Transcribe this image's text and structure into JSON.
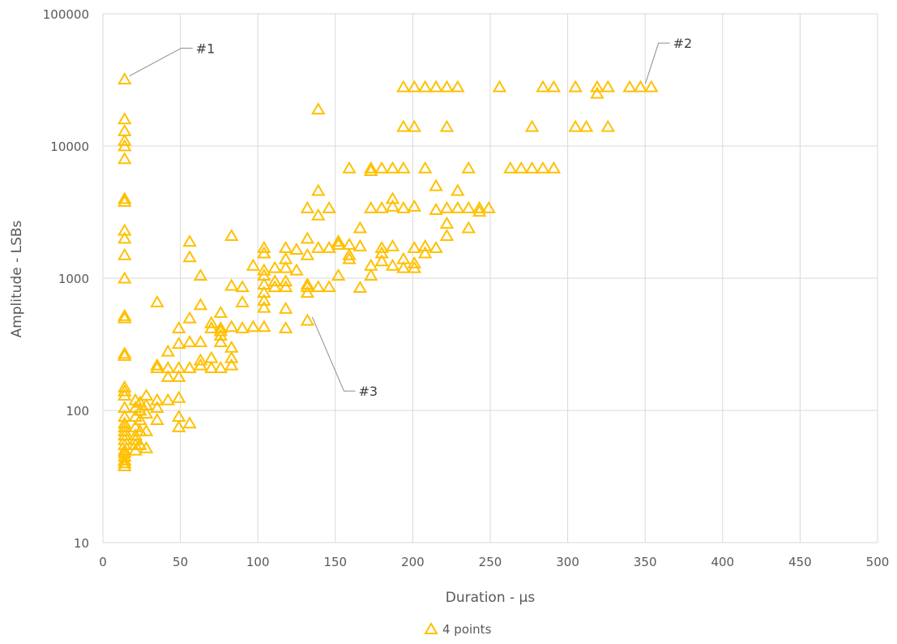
{
  "chart_data": {
    "type": "scatter",
    "xlabel": "Duration  -  µs",
    "ylabel": "Amplitude  -  LSBs",
    "xlim": [
      0,
      500
    ],
    "ylim": [
      10,
      100000
    ],
    "y_scale": "log",
    "x_ticks": [
      0,
      50,
      100,
      150,
      200,
      250,
      300,
      350,
      400,
      450,
      500
    ],
    "y_ticks": [
      10,
      100,
      1000,
      10000,
      100000
    ],
    "x_tick_labels": [
      "0",
      "50",
      "100",
      "150",
      "200",
      "250",
      "300",
      "350",
      "400",
      "450",
      "500"
    ],
    "y_tick_labels": [
      "10",
      "100",
      "1000",
      "10000",
      "100000"
    ],
    "grid": true,
    "legend": "bottom",
    "marker": "open-triangle",
    "color": "#FFC000",
    "series": [
      {
        "name": "4 points",
        "points": [
          [
            14,
            32000
          ],
          [
            14,
            16000
          ],
          [
            14,
            13000
          ],
          [
            14,
            11000
          ],
          [
            14,
            10000
          ],
          [
            14,
            8000
          ],
          [
            14,
            4000
          ],
          [
            14,
            3800
          ],
          [
            14,
            2300
          ],
          [
            14,
            2000
          ],
          [
            14,
            1500
          ],
          [
            14,
            1000
          ],
          [
            14,
            520
          ],
          [
            14,
            500
          ],
          [
            14,
            270
          ],
          [
            14,
            260
          ],
          [
            14,
            150
          ],
          [
            14,
            140
          ],
          [
            14,
            130
          ],
          [
            14,
            105
          ],
          [
            14,
            90
          ],
          [
            14,
            80
          ],
          [
            14,
            75
          ],
          [
            14,
            70
          ],
          [
            14,
            65
          ],
          [
            14,
            60
          ],
          [
            14,
            55
          ],
          [
            14,
            50
          ],
          [
            14,
            48
          ],
          [
            14,
            45
          ],
          [
            14,
            42
          ],
          [
            14,
            40
          ],
          [
            14,
            38
          ],
          [
            21,
            120
          ],
          [
            21,
            105
          ],
          [
            21,
            90
          ],
          [
            21,
            75
          ],
          [
            21,
            65
          ],
          [
            21,
            60
          ],
          [
            21,
            55
          ],
          [
            21,
            50
          ],
          [
            24,
            115
          ],
          [
            24,
            100
          ],
          [
            24,
            85
          ],
          [
            24,
            70
          ],
          [
            24,
            55
          ],
          [
            28,
            130
          ],
          [
            28,
            110
          ],
          [
            28,
            95
          ],
          [
            28,
            70
          ],
          [
            28,
            52
          ],
          [
            35,
            660
          ],
          [
            35,
            220
          ],
          [
            35,
            210
          ],
          [
            35,
            120
          ],
          [
            35,
            105
          ],
          [
            35,
            85
          ],
          [
            42,
            280
          ],
          [
            42,
            210
          ],
          [
            42,
            180
          ],
          [
            42,
            120
          ],
          [
            49,
            420
          ],
          [
            49,
            320
          ],
          [
            49,
            210
          ],
          [
            49,
            180
          ],
          [
            49,
            125
          ],
          [
            49,
            90
          ],
          [
            49,
            75
          ],
          [
            56,
            1900
          ],
          [
            56,
            1450
          ],
          [
            56,
            500
          ],
          [
            56,
            330
          ],
          [
            56,
            210
          ],
          [
            56,
            80
          ],
          [
            63,
            1050
          ],
          [
            63,
            630
          ],
          [
            63,
            330
          ],
          [
            63,
            240
          ],
          [
            63,
            220
          ],
          [
            70,
            460
          ],
          [
            70,
            420
          ],
          [
            70,
            250
          ],
          [
            70,
            210
          ],
          [
            76,
            550
          ],
          [
            76,
            420
          ],
          [
            76,
            400
          ],
          [
            76,
            370
          ],
          [
            76,
            330
          ],
          [
            76,
            210
          ],
          [
            83,
            2100
          ],
          [
            83,
            880
          ],
          [
            83,
            430
          ],
          [
            83,
            300
          ],
          [
            83,
            250
          ],
          [
            83,
            220
          ],
          [
            90,
            860
          ],
          [
            90,
            660
          ],
          [
            90,
            420
          ],
          [
            97,
            1250
          ],
          [
            97,
            430
          ],
          [
            104,
            1700
          ],
          [
            104,
            1550
          ],
          [
            104,
            1150
          ],
          [
            104,
            1050
          ],
          [
            104,
            900
          ],
          [
            104,
            780
          ],
          [
            104,
            680
          ],
          [
            104,
            600
          ],
          [
            104,
            430
          ],
          [
            111,
            1200
          ],
          [
            111,
            950
          ],
          [
            111,
            860
          ],
          [
            118,
            1700
          ],
          [
            118,
            1400
          ],
          [
            118,
            1200
          ],
          [
            118,
            950
          ],
          [
            118,
            860
          ],
          [
            118,
            590
          ],
          [
            118,
            420
          ],
          [
            125,
            1650
          ],
          [
            125,
            1150
          ],
          [
            132,
            3400
          ],
          [
            132,
            2000
          ],
          [
            132,
            1500
          ],
          [
            132,
            900
          ],
          [
            132,
            860
          ],
          [
            132,
            780
          ],
          [
            132,
            480
          ],
          [
            139,
            19000
          ],
          [
            139,
            4600
          ],
          [
            139,
            3000
          ],
          [
            139,
            1700
          ],
          [
            139,
            860
          ],
          [
            146,
            3400
          ],
          [
            146,
            1700
          ],
          [
            146,
            860
          ],
          [
            152,
            1900
          ],
          [
            152,
            1800
          ],
          [
            152,
            1050
          ],
          [
            159,
            6800
          ],
          [
            159,
            1800
          ],
          [
            159,
            1500
          ],
          [
            159,
            1400
          ],
          [
            166,
            2400
          ],
          [
            166,
            1750
          ],
          [
            166,
            850
          ],
          [
            173,
            6800
          ],
          [
            173,
            6500
          ],
          [
            173,
            3400
          ],
          [
            173,
            1250
          ],
          [
            173,
            1050
          ],
          [
            180,
            6800
          ],
          [
            180,
            3400
          ],
          [
            180,
            1700
          ],
          [
            180,
            1550
          ],
          [
            180,
            1350
          ],
          [
            187,
            6800
          ],
          [
            187,
            4000
          ],
          [
            187,
            3500
          ],
          [
            187,
            1750
          ],
          [
            187,
            1250
          ],
          [
            194,
            28000
          ],
          [
            194,
            14000
          ],
          [
            194,
            6800
          ],
          [
            194,
            3400
          ],
          [
            194,
            1400
          ],
          [
            194,
            1200
          ],
          [
            201,
            28000
          ],
          [
            201,
            14000
          ],
          [
            201,
            3500
          ],
          [
            201,
            1700
          ],
          [
            201,
            1300
          ],
          [
            201,
            1200
          ],
          [
            208,
            28000
          ],
          [
            208,
            6800
          ],
          [
            208,
            1750
          ],
          [
            208,
            1550
          ],
          [
            215,
            28000
          ],
          [
            215,
            5000
          ],
          [
            215,
            3300
          ],
          [
            215,
            1700
          ],
          [
            222,
            28000
          ],
          [
            222,
            14000
          ],
          [
            222,
            3400
          ],
          [
            222,
            2600
          ],
          [
            222,
            2100
          ],
          [
            229,
            28000
          ],
          [
            229,
            4600
          ],
          [
            229,
            3400
          ],
          [
            236,
            6800
          ],
          [
            236,
            3400
          ],
          [
            236,
            2400
          ],
          [
            243,
            3400
          ],
          [
            243,
            3200
          ],
          [
            249,
            3400
          ],
          [
            256,
            28000
          ],
          [
            263,
            6800
          ],
          [
            270,
            6800
          ],
          [
            277,
            14000
          ],
          [
            277,
            6800
          ],
          [
            284,
            28000
          ],
          [
            284,
            6800
          ],
          [
            291,
            28000
          ],
          [
            291,
            6800
          ],
          [
            305,
            28000
          ],
          [
            305,
            14000
          ],
          [
            312,
            14000
          ],
          [
            319,
            28000
          ],
          [
            319,
            25000
          ],
          [
            326,
            28000
          ],
          [
            326,
            14000
          ],
          [
            340,
            28000
          ],
          [
            347,
            28000
          ],
          [
            354,
            28000
          ]
        ]
      }
    ],
    "annotations": [
      {
        "text": "#1",
        "x": 14,
        "y": 32000,
        "label_x": 60,
        "label_y": 55000
      },
      {
        "text": "#2",
        "x": 347,
        "y": 28000,
        "label_x": 368,
        "label_y": 60000
      },
      {
        "text": "#3",
        "x": 132,
        "y": 480,
        "label_x": 165,
        "label_y": 140
      }
    ]
  }
}
